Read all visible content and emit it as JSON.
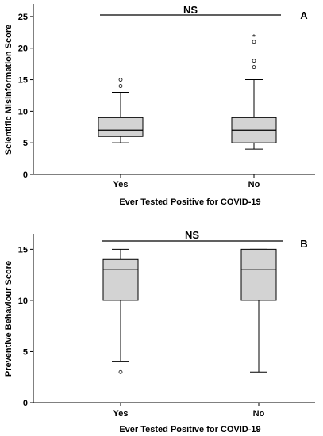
{
  "chart_data": [
    {
      "type": "box",
      "panel_label": "A",
      "significance_label": "NS",
      "xlabel": "Ever Tested Positive for COVID-19",
      "ylabel": "Scientific Misinformation Score",
      "ylim": [
        0,
        27
      ],
      "yticks": [
        0,
        5,
        10,
        15,
        20,
        25
      ],
      "categories": [
        "Yes",
        "No"
      ],
      "boxes": [
        {
          "whisker_low": 5,
          "q1": 6,
          "median": 7,
          "q3": 9,
          "whisker_high": 13,
          "outliers": [
            14,
            15
          ],
          "extremes": []
        },
        {
          "whisker_low": 4,
          "q1": 5,
          "median": 7,
          "q3": 9,
          "whisker_high": 15,
          "outliers": [
            17,
            18,
            21
          ],
          "extremes": [
            22
          ]
        }
      ],
      "box_color": "#d3d3d3"
    },
    {
      "type": "box",
      "panel_label": "B",
      "significance_label": "NS",
      "xlabel": "Ever Tested Positive for COVID-19",
      "ylabel": "Preventive Behaviour Score",
      "ylim": [
        0,
        16.5
      ],
      "yticks": [
        0,
        5,
        10,
        15
      ],
      "categories": [
        "Yes",
        "No"
      ],
      "boxes": [
        {
          "whisker_low": 4,
          "q1": 10,
          "median": 13,
          "q3": 14,
          "whisker_high": 15,
          "outliers": [
            3
          ],
          "extremes": []
        },
        {
          "whisker_low": 3,
          "q1": 10,
          "median": 13,
          "q3": 15,
          "whisker_high": 15,
          "outliers": [],
          "extremes": []
        }
      ],
      "box_color": "#d3d3d3"
    }
  ]
}
